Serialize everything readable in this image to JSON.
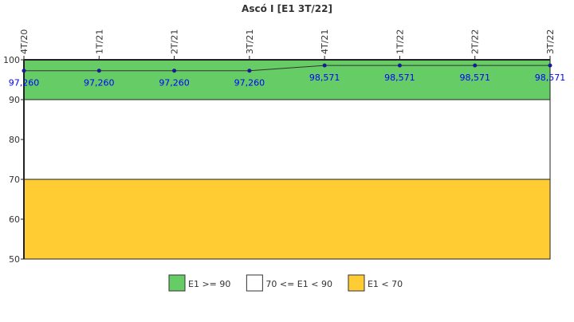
{
  "chart_data": {
    "type": "line",
    "title": "Ascó I [E1 3T/22]",
    "categories": [
      "4T/20",
      "1T/21",
      "2T/21",
      "3T/21",
      "4T/21",
      "1T/22",
      "2T/22",
      "3T/22"
    ],
    "values": [
      97.26,
      97.26,
      97.26,
      97.26,
      98.571,
      98.571,
      98.571,
      98.571
    ],
    "data_labels": [
      "97,260",
      "97,260",
      "97,260",
      "97,260",
      "98,571",
      "98,571",
      "98,571",
      "98,571"
    ],
    "ylim": [
      50,
      100
    ],
    "yticks": [
      50,
      60,
      70,
      80,
      90,
      100
    ],
    "grid": false,
    "bands": [
      {
        "label": "E1 >= 90",
        "from": 90,
        "to": 100,
        "color": "#66cc66"
      },
      {
        "label": "70 <= E1 < 90",
        "from": 70,
        "to": 90,
        "color": "#ffffff"
      },
      {
        "label": "E1 < 70",
        "from": 50,
        "to": 70,
        "color": "#ffcc33"
      }
    ],
    "line_color": "#333333",
    "point_color": "#1a1a99",
    "label_color": "#0000ff",
    "legend_position": "bottom"
  }
}
